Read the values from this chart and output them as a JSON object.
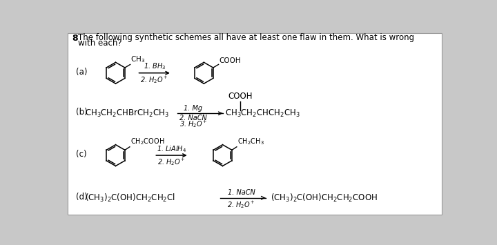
{
  "bg_outer": "#c8c8c8",
  "bg_inner": "#ffffff",
  "text_color": "#000000",
  "title_line1": "The following synthetic schemes all have at least one flaw in them. What is wrong",
  "title_line2": "with each?",
  "problem_num": "8",
  "fs_title": 8.5,
  "fs_body": 8.5,
  "fs_arrow": 7.0,
  "fs_label": 9.0
}
